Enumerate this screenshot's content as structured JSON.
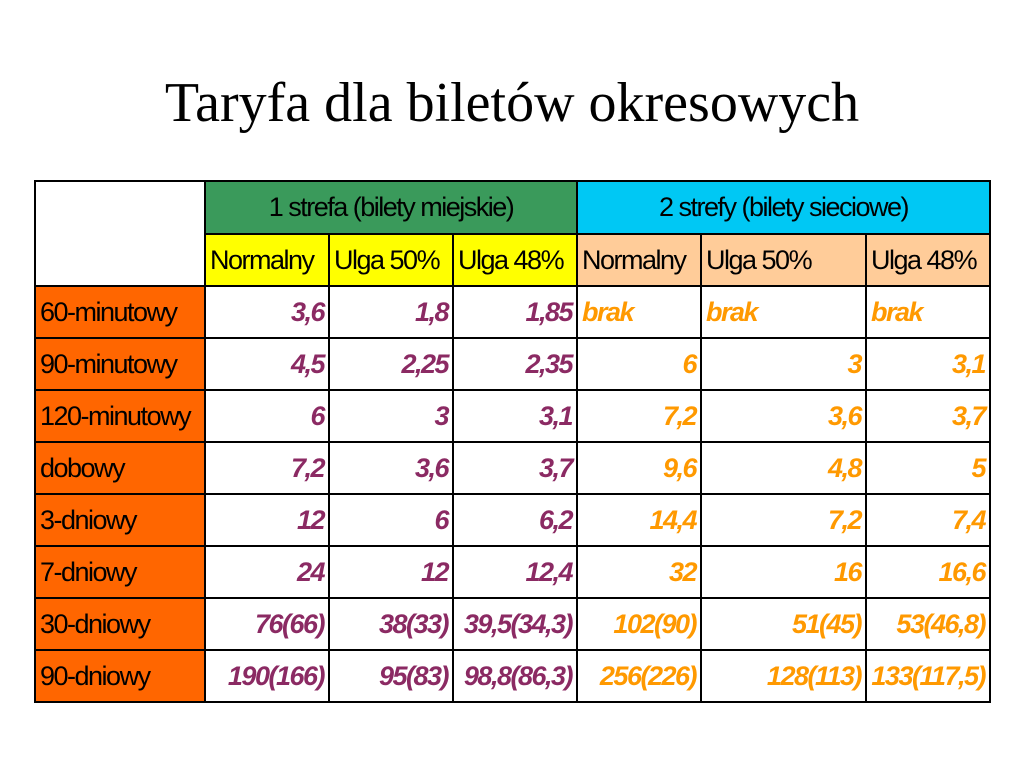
{
  "title": "Taryfa dla biletów okresowych",
  "table": {
    "groups": [
      {
        "label": "1 strefa (bilety miejskie)"
      },
      {
        "label": "2 strefy (bilety sieciowe)"
      }
    ],
    "subheaders": [
      "Normalny",
      "Ulga 50%",
      "Ulga 48%",
      "Normalny",
      "Ulga 50%",
      "Ulga 48%"
    ],
    "rows": [
      {
        "label": "60-minutowy",
        "values": [
          "3,6",
          "1,8",
          "1,85",
          "brak",
          "brak",
          "brak"
        ]
      },
      {
        "label": "90-minutowy",
        "values": [
          "4,5",
          "2,25",
          "2,35",
          "6",
          "3",
          "3,1"
        ]
      },
      {
        "label": "120-minutowy",
        "values": [
          "6",
          "3",
          "3,1",
          "7,2",
          "3,6",
          "3,7"
        ]
      },
      {
        "label": "dobowy",
        "values": [
          "7,2",
          "3,6",
          "3,7",
          "9,6",
          "4,8",
          "5"
        ]
      },
      {
        "label": "3-dniowy",
        "values": [
          "12",
          "6",
          "6,2",
          "14,4",
          "7,2",
          "7,4"
        ]
      },
      {
        "label": "7-dniowy",
        "values": [
          "24",
          "12",
          "12,4",
          "32",
          "16",
          "16,6"
        ]
      },
      {
        "label": "30-dniowy",
        "values": [
          "76(66)",
          "38(33)",
          "39,5(34,3)",
          "102(90)",
          "51(45)",
          "53(46,8)"
        ]
      },
      {
        "label": "90-dniowy",
        "values": [
          "190(166)",
          "95(83)",
          "98,8(86,3)",
          "256(226)",
          "128(113)",
          "133(117,5)"
        ]
      }
    ]
  },
  "colors": {
    "group1_header": "#3a9a5b",
    "group2_header": "#00c8f4",
    "group1_subheader": "#ffff00",
    "group2_subheader": "#ffcc99",
    "row_label": "#ff6600",
    "group1_values": "#8b2a63",
    "group2_values": "#ff9900"
  }
}
